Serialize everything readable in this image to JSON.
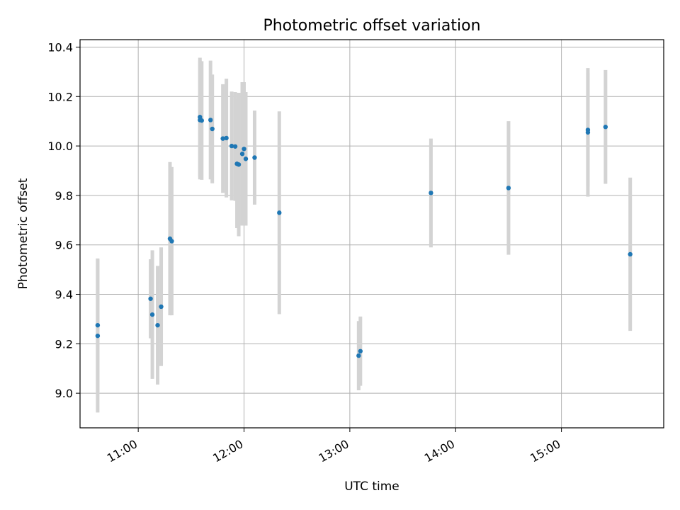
{
  "chart_data": {
    "type": "scatter",
    "title": "Photometric offset variation",
    "xlabel": "UTC time",
    "ylabel": "Photometric offset",
    "x_unit": "time of day (UTC), hours",
    "xlim": [
      "10:27",
      "15:58"
    ],
    "ylim": [
      8.86,
      10.43
    ],
    "x_ticks": [
      "11:00",
      "12:00",
      "13:00",
      "14:00",
      "15:00"
    ],
    "y_ticks": [
      "9.0",
      "9.2",
      "9.4",
      "9.6",
      "9.8",
      "10.0",
      "10.2",
      "10.4"
    ],
    "grid": true,
    "point_color": "#1f77b4",
    "errorbar_color": "#d3d3d3",
    "points": [
      {
        "time": "10:37",
        "y": 9.275,
        "err": 0.27
      },
      {
        "time": "10:37",
        "y": 9.232,
        "err": 0.31
      },
      {
        "time": "11:07",
        "y": 9.382,
        "err": 0.16
      },
      {
        "time": "11:08",
        "y": 9.318,
        "err": 0.26
      },
      {
        "time": "11:11",
        "y": 9.275,
        "err": 0.24
      },
      {
        "time": "11:13",
        "y": 9.35,
        "err": 0.24
      },
      {
        "time": "11:18",
        "y": 9.625,
        "err": 0.31
      },
      {
        "time": "11:19",
        "y": 9.615,
        "err": 0.3
      },
      {
        "time": "11:35",
        "y": 10.117,
        "err": 0.24
      },
      {
        "time": "11:35",
        "y": 10.105,
        "err": 0.24
      },
      {
        "time": "11:36",
        "y": 10.103,
        "err": 0.24
      },
      {
        "time": "11:41",
        "y": 10.105,
        "err": 0.24
      },
      {
        "time": "11:42",
        "y": 10.069,
        "err": 0.22
      },
      {
        "time": "11:48",
        "y": 10.03,
        "err": 0.22
      },
      {
        "time": "11:50",
        "y": 10.032,
        "err": 0.24
      },
      {
        "time": "11:53",
        "y": 10.0,
        "err": 0.22
      },
      {
        "time": "11:55",
        "y": 9.998,
        "err": 0.22
      },
      {
        "time": "11:56",
        "y": 9.928,
        "err": 0.26
      },
      {
        "time": "11:57",
        "y": 9.925,
        "err": 0.29
      },
      {
        "time": "11:59",
        "y": 9.968,
        "err": 0.29
      },
      {
        "time": "12:00",
        "y": 9.988,
        "err": 0.27
      },
      {
        "time": "12:01",
        "y": 9.948,
        "err": 0.27
      },
      {
        "time": "12:06",
        "y": 9.953,
        "err": 0.19
      },
      {
        "time": "12:20",
        "y": 9.73,
        "err": 0.41
      },
      {
        "time": "13:05",
        "y": 9.152,
        "err": 0.14
      },
      {
        "time": "13:06",
        "y": 9.17,
        "err": 0.14
      },
      {
        "time": "13:46",
        "y": 9.81,
        "err": 0.22
      },
      {
        "time": "14:30",
        "y": 9.83,
        "err": 0.27
      },
      {
        "time": "15:15",
        "y": 10.065,
        "err": 0.23
      },
      {
        "time": "15:15",
        "y": 10.055,
        "err": 0.26
      },
      {
        "time": "15:25",
        "y": 10.077,
        "err": 0.23
      },
      {
        "time": "15:39",
        "y": 9.562,
        "err": 0.31
      }
    ]
  }
}
